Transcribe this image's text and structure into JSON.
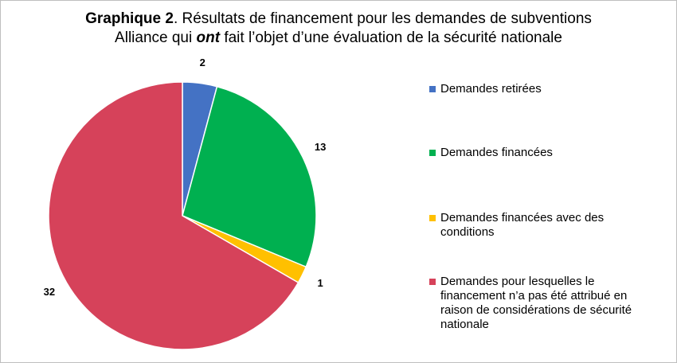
{
  "chart_data": {
    "type": "pie",
    "title": [
      "Graphique 2",
      ". Résultats de financement pour les demandes de subventions",
      "Alliance qui ",
      "ont",
      " fait l’objet d’une évaluation de la sécurité nationale"
    ],
    "series": [
      {
        "name": "Demandes retirées",
        "color": "#4472c4",
        "values": [
          2
        ]
      },
      {
        "name": "Demandes financées",
        "color": "#00b050",
        "values": [
          13
        ]
      },
      {
        "name": "Demandes financées avec des conditions",
        "color": "#ffc000",
        "values": [
          1
        ]
      },
      {
        "name": "Demandes pour lesquelles le financement n’a pas été attribué en raison de considérations de sécurité nationale",
        "color": "#d6425a",
        "values": [
          32
        ]
      }
    ],
    "legend": "right"
  }
}
